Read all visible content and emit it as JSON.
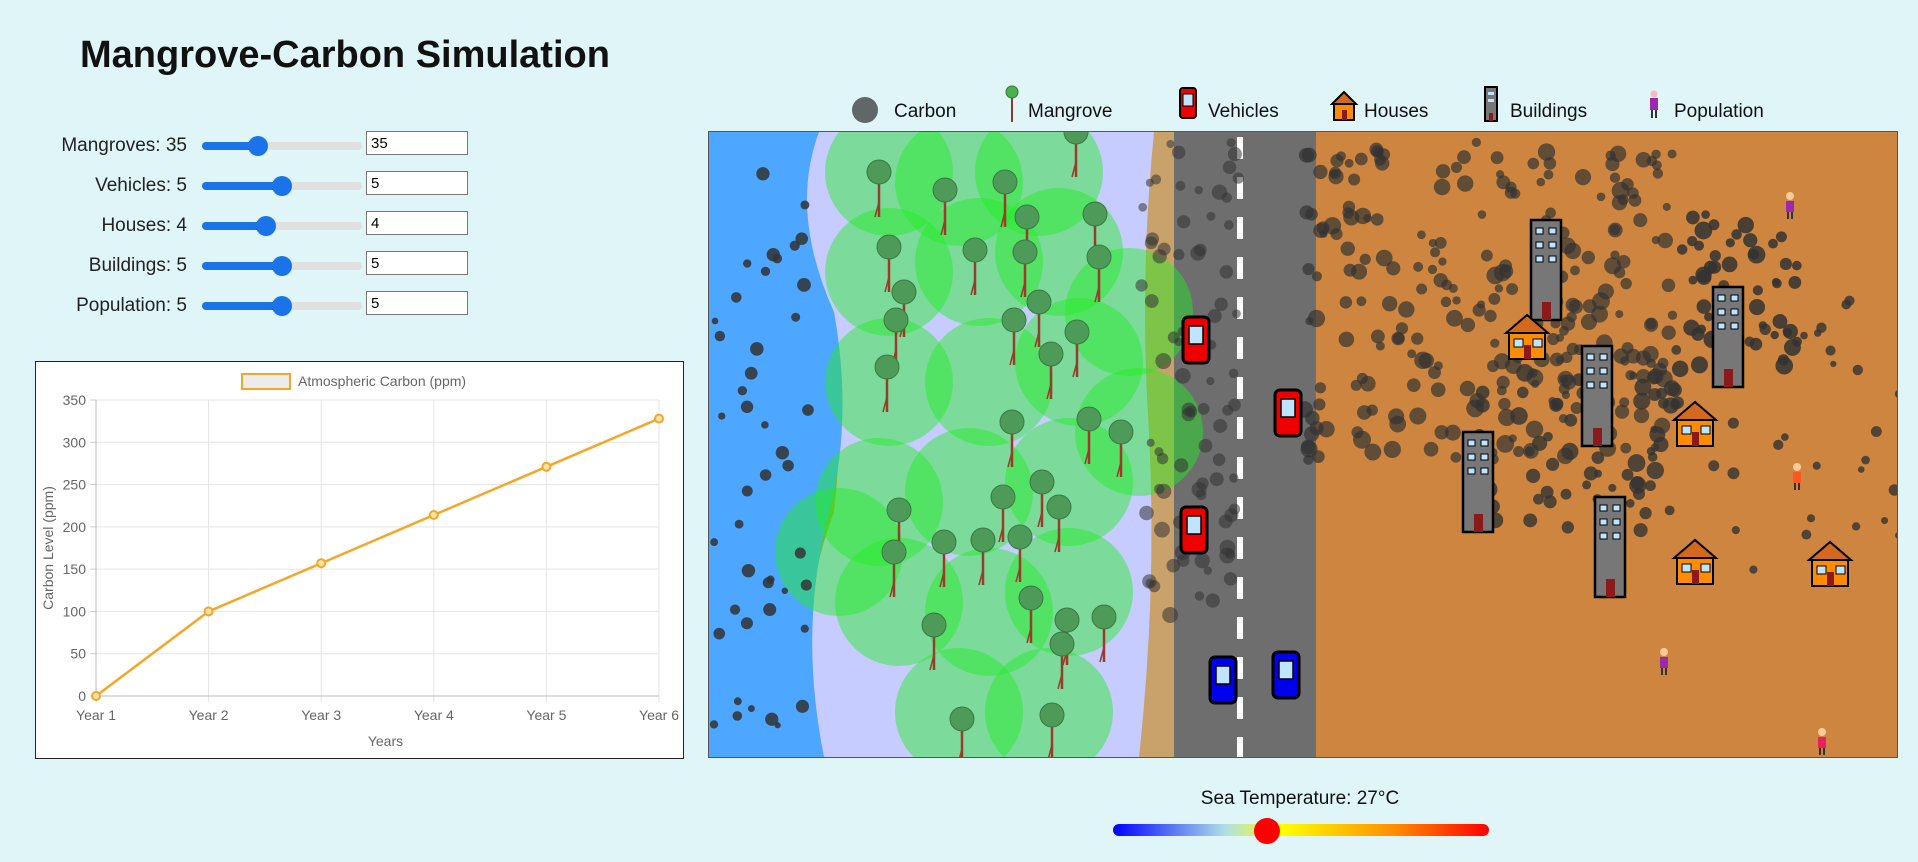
{
  "title": "Mangrove-Carbon Simulation",
  "controls": [
    {
      "label": "Mangroves: 35",
      "value": "35",
      "level": 0.35
    },
    {
      "label": "Vehicles: 5",
      "value": "5",
      "level": 0.5
    },
    {
      "label": "Houses: 4",
      "value": "4",
      "level": 0.4
    },
    {
      "label": "Buildings: 5",
      "value": "5",
      "level": 0.5
    },
    {
      "label": "Population: 5",
      "value": "5",
      "level": 0.5
    }
  ],
  "legend": [
    {
      "label": "Carbon",
      "icon": "carbon-icon"
    },
    {
      "label": "Mangrove",
      "icon": "mangrove-icon"
    },
    {
      "label": "Vehicles",
      "icon": "vehicle-icon"
    },
    {
      "label": "Houses",
      "icon": "house-icon"
    },
    {
      "label": "Buildings",
      "icon": "building-icon"
    },
    {
      "label": "Population",
      "icon": "person-icon"
    }
  ],
  "temperature": {
    "label": "Sea Temperature: 27°C",
    "level": 0.41
  },
  "colors": {
    "accent": "#1a73e8",
    "line": "#f5a623",
    "sea": "#4da6ff",
    "shore": "#c6ccff",
    "mangrove": "#00ee00",
    "sand": "#c8a26a",
    "road": "#6e6e6e",
    "land": "#cd853f",
    "carbon": "#333333"
  },
  "chart_data": {
    "type": "line",
    "categories": [
      "Year 1",
      "Year 2",
      "Year 3",
      "Year 4",
      "Year 5",
      "Year 6"
    ],
    "series": [
      {
        "name": "Atmospheric Carbon (ppm)",
        "values": [
          0,
          100,
          157,
          214,
          271,
          328
        ]
      }
    ],
    "xlabel": "Years",
    "ylabel": "Carbon Level (ppm)",
    "ylim": [
      0,
      350
    ],
    "yticks": [
      "0",
      "50",
      "100",
      "150",
      "200",
      "250",
      "300",
      "350"
    ],
    "grid": true,
    "legend_position": "top"
  }
}
